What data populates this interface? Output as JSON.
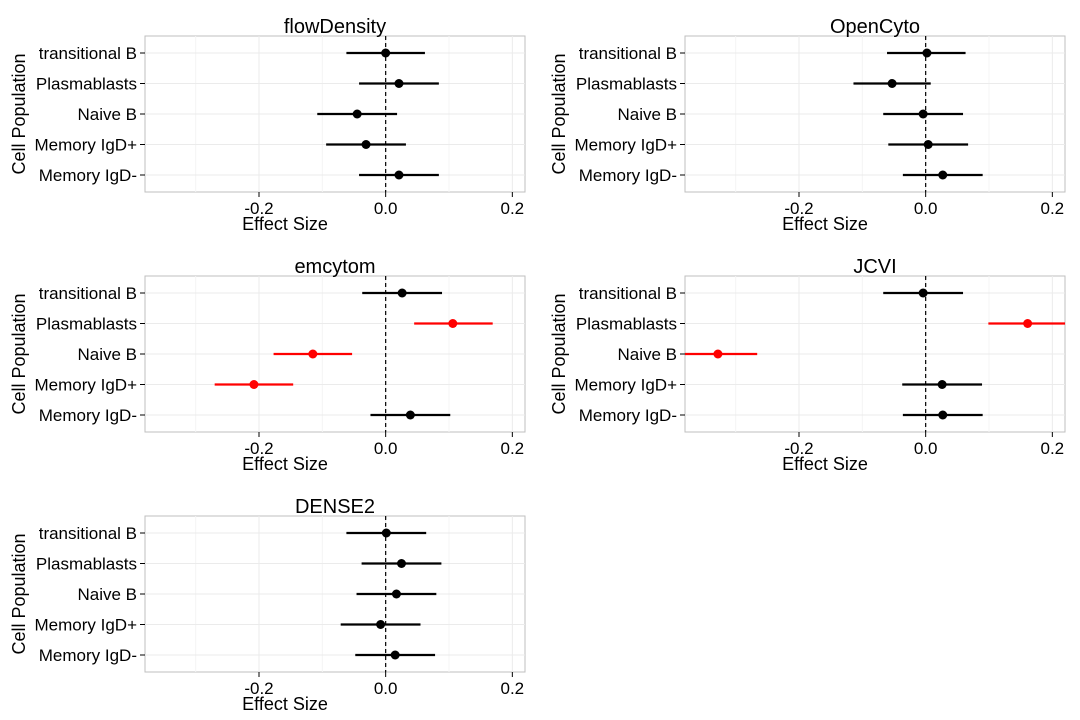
{
  "colors": {
    "normal": "#000000",
    "significant": "#ff0000",
    "zero_line": "#000000",
    "grid": "#ebebeb",
    "panel_border": "#bfbfbf"
  },
  "chart_data": [
    {
      "type": "forest",
      "title": "flowDensity",
      "xlabel": "Effect Size",
      "ylabel": "Cell Population",
      "xlim": [
        -0.38,
        0.22
      ],
      "xticks": [
        -0.2,
        0.0,
        0.2
      ],
      "xtick_labels": [
        "-0.2",
        "0.0",
        "0.2"
      ],
      "zero_line": 0,
      "categories": [
        "transitional B",
        "Plasmablasts",
        "Naive B",
        "Memory IgD+",
        "Memory IgD-"
      ],
      "estimates": [
        0.0,
        0.021,
        -0.045,
        -0.031,
        0.021
      ],
      "lower": [
        -0.062,
        -0.042,
        -0.108,
        -0.094,
        -0.042
      ],
      "upper": [
        0.062,
        0.084,
        0.018,
        0.032,
        0.084
      ],
      "significant": [
        false,
        false,
        false,
        false,
        false
      ]
    },
    {
      "type": "forest",
      "title": "OpenCyto",
      "xlabel": "Effect Size",
      "ylabel": "Cell Population",
      "xlim": [
        -0.38,
        0.22
      ],
      "xticks": [
        -0.2,
        0.0,
        0.2
      ],
      "xtick_labels": [
        "-0.2",
        "0.0",
        "0.2"
      ],
      "zero_line": 0,
      "categories": [
        "transitional B",
        "Plasmablasts",
        "Naive B",
        "Memory IgD+",
        "Memory IgD-"
      ],
      "estimates": [
        0.002,
        -0.053,
        -0.004,
        0.004,
        0.027
      ],
      "lower": [
        -0.061,
        -0.114,
        -0.067,
        -0.059,
        -0.036
      ],
      "upper": [
        0.063,
        0.008,
        0.059,
        0.067,
        0.09
      ],
      "significant": [
        false,
        false,
        false,
        false,
        false
      ]
    },
    {
      "type": "forest",
      "title": "emcytom",
      "xlabel": "Effect Size",
      "ylabel": "Cell Population",
      "xlim": [
        -0.38,
        0.22
      ],
      "xticks": [
        -0.2,
        0.0,
        0.2
      ],
      "xtick_labels": [
        "-0.2",
        "0.0",
        "0.2"
      ],
      "zero_line": 0,
      "categories": [
        "transitional B",
        "Plasmablasts",
        "Naive B",
        "Memory IgD+",
        "Memory IgD-"
      ],
      "estimates": [
        0.026,
        0.106,
        -0.115,
        -0.208,
        0.039
      ],
      "lower": [
        -0.037,
        0.045,
        -0.177,
        -0.27,
        -0.024
      ],
      "upper": [
        0.089,
        0.169,
        -0.053,
        -0.146,
        0.102
      ],
      "significant": [
        false,
        true,
        true,
        true,
        false
      ]
    },
    {
      "type": "forest",
      "title": "JCVI",
      "xlabel": "Effect Size",
      "ylabel": "Cell Population",
      "xlim": [
        -0.38,
        0.22
      ],
      "xticks": [
        -0.2,
        0.0,
        0.2
      ],
      "xtick_labels": [
        "-0.2",
        "0.0",
        "0.2"
      ],
      "zero_line": 0,
      "categories": [
        "transitional B",
        "Plasmablasts",
        "Naive B",
        "Memory IgD+",
        "Memory IgD-"
      ],
      "estimates": [
        -0.004,
        0.161,
        -0.328,
        0.026,
        0.027
      ],
      "lower": [
        -0.067,
        0.099,
        -0.39,
        -0.037,
        -0.036
      ],
      "upper": [
        0.059,
        0.223,
        -0.266,
        0.089,
        0.09
      ],
      "significant": [
        false,
        true,
        true,
        false,
        false
      ]
    },
    {
      "type": "forest",
      "title": "DENSE2",
      "xlabel": "Effect Size",
      "ylabel": "Cell Population",
      "xlim": [
        -0.38,
        0.22
      ],
      "xticks": [
        -0.2,
        0.0,
        0.2
      ],
      "xtick_labels": [
        "-0.2",
        "0.0",
        "0.2"
      ],
      "zero_line": 0,
      "categories": [
        "transitional B",
        "Plasmablasts",
        "Naive B",
        "Memory IgD+",
        "Memory IgD-"
      ],
      "estimates": [
        0.001,
        0.025,
        0.017,
        -0.008,
        0.015
      ],
      "lower": [
        -0.062,
        -0.038,
        -0.046,
        -0.071,
        -0.048
      ],
      "upper": [
        0.064,
        0.088,
        0.08,
        0.055,
        0.078
      ],
      "significant": [
        false,
        false,
        false,
        false,
        false
      ]
    }
  ]
}
